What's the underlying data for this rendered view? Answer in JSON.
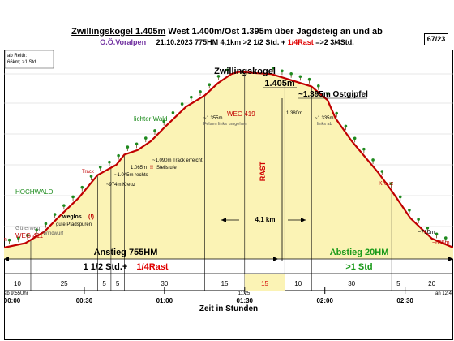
{
  "header": {
    "title_main": "Zwillingskogel  1.405m",
    "title_rest": " West 1.400m/Ost 1.395m  über Jagdsteig an und ab",
    "region": "O.Ö.Voralpen",
    "stats": "21.10.2023 775HM  4,1km  >2 1/2 Std. +",
    "rast": "1/4Rast",
    "total": "=>2 3/4Std.",
    "page": "67/23"
  },
  "info_box": [
    "ab Reith:",
    "66km; >1 Std."
  ],
  "chart_data": {
    "type": "line",
    "title": "Zwillingskogel 1.405m",
    "xlabel": "Zeit in Stunden",
    "x_ticks": [
      "00:00",
      "00:30",
      "01:00",
      "01:30",
      "02:00",
      "02:30"
    ],
    "x_unit": "minutes",
    "x_range": [
      0,
      168
    ],
    "y_range": [
      580,
      1460
    ],
    "series": [
      {
        "x": [
          0,
          8,
          15,
          20,
          28,
          35,
          42,
          45,
          50,
          55,
          60,
          68,
          75,
          80,
          85,
          88,
          93,
          100,
          115,
          121,
          124,
          130,
          140,
          145,
          152,
          160,
          168
        ],
        "y": [
          630,
          650,
          700,
          760,
          850,
          950,
          995,
          1040,
          1060,
          1100,
          1160,
          1250,
          1300,
          1355,
          1395,
          1405,
          1400,
          1395,
          1340,
          1280,
          1200,
          1100,
          960,
          880,
          760,
          670,
          630
        ]
      }
    ],
    "segment_labels": [
      "10",
      "25",
      "5",
      "5",
      "30",
      "15",
      "15",
      "10",
      "30",
      "5",
      "20"
    ],
    "time_marks": {
      "start": "ab 9:55Uhr",
      "summit": "11:25",
      "end": "an 12:4"
    }
  },
  "annotations": {
    "summit": [
      "Zwillingskogel",
      "1.405m"
    ],
    "ostgipfel": "~1.395m Ostgipfel",
    "rast": "RAST",
    "distance": "4,1 km",
    "lichter_wald": "lichter Wald",
    "hochwald": "HOCHWALD",
    "weg419": "WEG 419",
    "weg411": "WEG 411",
    "guterweg": "Güterweg",
    "weglos": "weglos",
    "weglos_marker": "(!)",
    "gute_pfadspuren": "gute Pfadspuren",
    "windwurf": "Windwurf",
    "track": "Track",
    "track_erreicht": "~1.090m Track erreicht",
    "steilstufe_alt": "1.065m",
    "steilstufe_mark": "!!",
    "steilstufe": "Steilstufe",
    "rechts": "~1.045m rechts",
    "kreuz_974": "~974m Kreuz",
    "felsen_alt": "~1.355m",
    "felsen": "Felsen links umgehen",
    "alt_1380": "1.380m",
    "alt_1335": "~1.335m",
    "links_ab": "links ab",
    "kreuz": "Kreuz",
    "alt_710": "~710m",
    "alt_655": "~655m",
    "left_cut": "m"
  },
  "footer": {
    "anstieg": "Anstieg 755HM",
    "anstieg_time": "1 1/2 Std.+",
    "anstieg_rast": "1/4Rast",
    "abstieg": "Abstieg 20HM",
    "abstieg_time": ">1 Std"
  }
}
